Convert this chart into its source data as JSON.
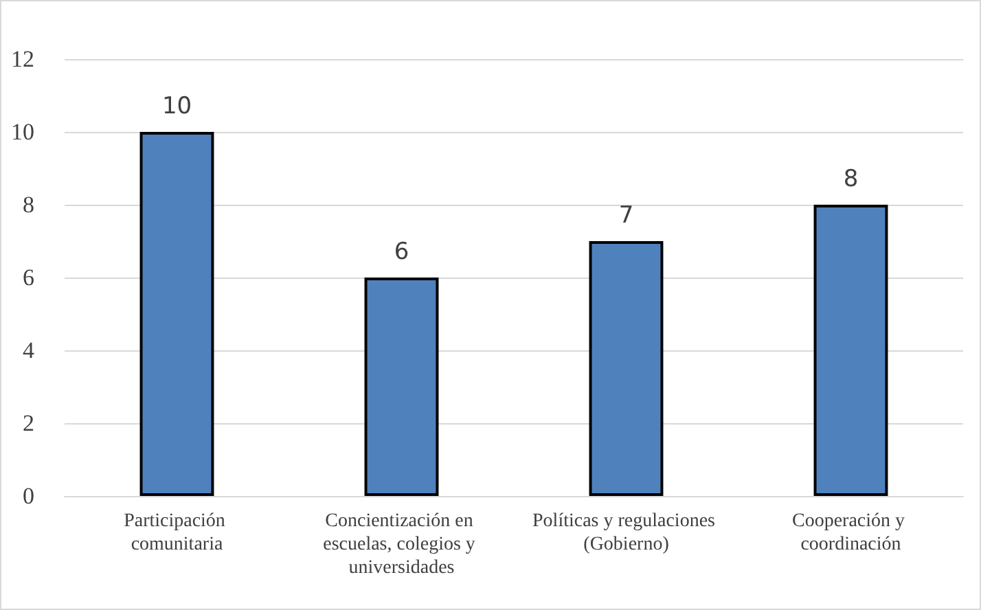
{
  "chart_data": {
    "type": "bar",
    "categories": [
      "Participación comunitaria",
      "Concientización en escuelas, colegios y universidades",
      "Políticas y regulaciones (Gobierno)",
      "Cooperación y coordinación"
    ],
    "values": [
      10,
      6,
      7,
      8
    ],
    "color": "#4f81bd",
    "ylim": [
      0,
      12
    ],
    "yticks": [
      0,
      2,
      4,
      6,
      8,
      10,
      12
    ],
    "grid": "y",
    "data_labels": true
  }
}
